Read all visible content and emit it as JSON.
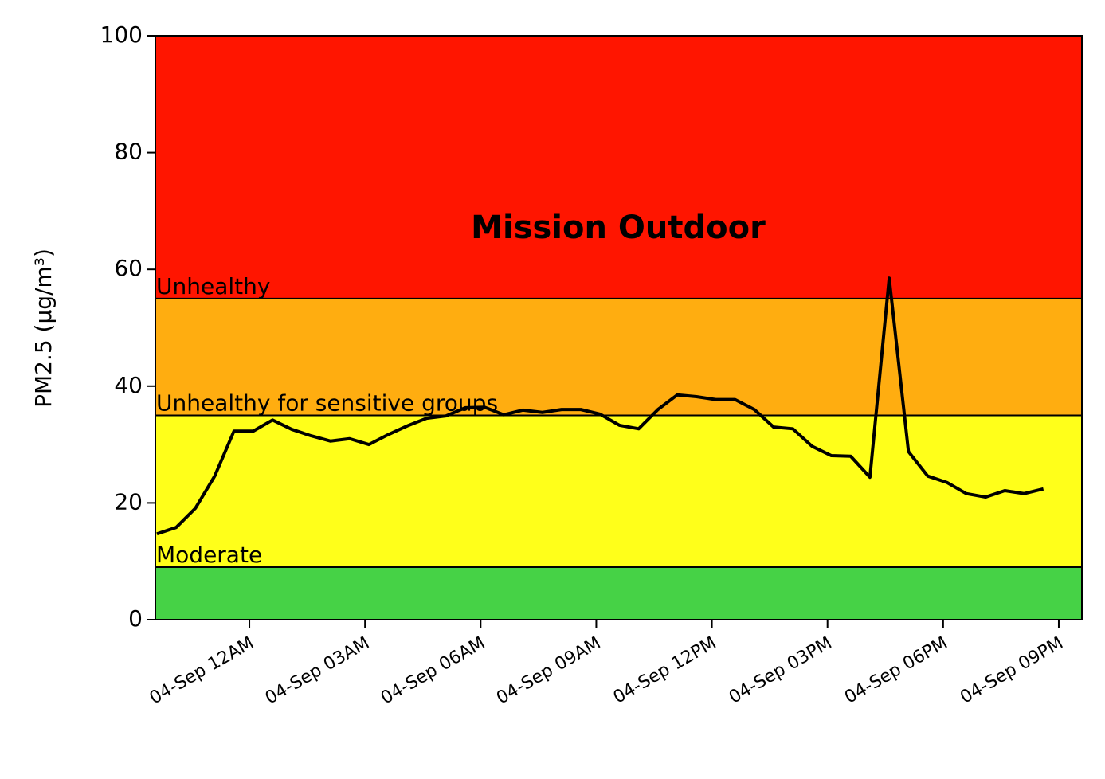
{
  "chart_data": {
    "type": "line",
    "title": "Mission Outdoor",
    "y_label": "PM2.5 (µg/m³)",
    "x": [
      -2.4,
      -1.9,
      -1.4,
      -0.9,
      -0.4,
      0.1,
      0.6,
      1.1,
      1.6,
      2.1,
      2.6,
      3.1,
      3.6,
      4.1,
      4.6,
      5.1,
      5.6,
      6.1,
      6.6,
      7.1,
      7.6,
      8.1,
      8.6,
      9.1,
      9.6,
      10.1,
      10.6,
      11.1,
      11.6,
      12.1,
      12.6,
      13.1,
      13.6,
      14.1,
      14.6,
      15.1,
      15.6,
      16.1,
      16.6,
      17.1,
      17.6,
      18.1,
      18.6,
      19.1,
      19.6,
      20.1,
      20.6
    ],
    "series": [
      {
        "name": "PM2.5",
        "color": "#000000",
        "values": [
          14.7,
          15.8,
          19.1,
          24.6,
          32.3,
          32.3,
          34.2,
          32.6,
          31.5,
          30.6,
          31.0,
          30.0,
          31.7,
          33.2,
          34.5,
          34.9,
          36.3,
          36.4,
          35.1,
          35.9,
          35.5,
          36.0,
          36.0,
          35.2,
          33.3,
          32.7,
          36.0,
          38.5,
          38.2,
          37.7,
          37.7,
          36.0,
          33.0,
          32.7,
          29.7,
          28.1,
          28.0,
          24.4,
          58.5,
          28.8,
          24.6,
          23.5,
          21.6,
          21.0,
          22.1,
          21.6,
          22.4
        ]
      }
    ],
    "bands": [
      {
        "from": 0,
        "to": 9,
        "color": "#46d246"
      },
      {
        "from": 9,
        "to": 35,
        "color": "#ffff1a",
        "label": "Moderate"
      },
      {
        "from": 35,
        "to": 55,
        "color": "#ffad10",
        "label": "Unhealthy for sensitive groups"
      },
      {
        "from": 55,
        "to": 100,
        "color": "#ff1500",
        "label": "Unhealthy"
      }
    ],
    "xlim": [
      -2.44,
      21.6
    ],
    "ylim": [
      0,
      100
    ],
    "yticks": [
      0,
      20,
      40,
      60,
      80,
      100
    ],
    "xticks": [
      {
        "value": 0,
        "label": "04-Sep 12AM"
      },
      {
        "value": 3,
        "label": "04-Sep 03AM"
      },
      {
        "value": 6,
        "label": "04-Sep 06AM"
      },
      {
        "value": 9,
        "label": "04-Sep 09AM"
      },
      {
        "value": 12,
        "label": "04-Sep 12PM"
      },
      {
        "value": 15,
        "label": "04-Sep 03PM"
      },
      {
        "value": 18,
        "label": "04-Sep 06PM"
      },
      {
        "value": 21,
        "label": "04-Sep 09PM"
      }
    ]
  }
}
